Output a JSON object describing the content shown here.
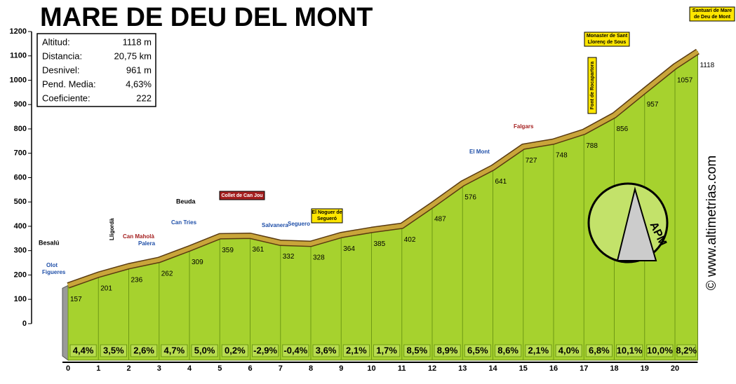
{
  "chart_data": {
    "type": "area",
    "title": "MARE DE DEU DEL MONT",
    "info": [
      {
        "label": "Altitud:",
        "value": "1118 m"
      },
      {
        "label": "Distancia:",
        "value": "20,75 km"
      },
      {
        "label": "Desnivel:",
        "value": "961 m"
      },
      {
        "label": "Pend. Media:",
        "value": "4,63%"
      },
      {
        "label": "Coeficiente:",
        "value": "222"
      }
    ],
    "x": [
      0,
      1,
      2,
      3,
      4,
      5,
      6,
      7,
      8,
      9,
      10,
      11,
      12,
      13,
      14,
      15,
      16,
      17,
      18,
      19,
      20,
      20.75
    ],
    "values": [
      157,
      201,
      236,
      262,
      309,
      359,
      361,
      332,
      328,
      364,
      385,
      402,
      487,
      576,
      641,
      727,
      748,
      788,
      856,
      957,
      1057,
      1118
    ],
    "gradients": [
      4.4,
      3.5,
      2.6,
      4.7,
      5.0,
      0.2,
      -2.9,
      -0.4,
      3.6,
      2.1,
      1.7,
      8.5,
      8.9,
      6.5,
      8.6,
      2.1,
      4.0,
      6.8,
      10.1,
      10.0,
      8.2
    ],
    "gradient_labels": [
      "4,4%",
      "3,5%",
      "2,6%",
      "4,7%",
      "5,0%",
      "0,2%",
      "-2,9%",
      "-0,4%",
      "3,6%",
      "2,1%",
      "1,7%",
      "8,5%",
      "8,9%",
      "6,5%",
      "8,6%",
      "2,1%",
      "4,0%",
      "6,8%",
      "10,1%",
      "10,0%",
      "8,2%"
    ],
    "color": "#a6d22e",
    "line_color": "#c9a53a",
    "xlim": [
      0,
      20.75
    ],
    "ylim": [
      -150,
      1200
    ],
    "yticks": [
      0,
      100,
      200,
      300,
      400,
      500,
      600,
      700,
      800,
      900,
      1000,
      1100,
      1200
    ],
    "xticks": [
      0,
      1,
      2,
      3,
      4,
      5,
      6,
      7,
      8,
      9,
      10,
      11,
      12,
      13,
      14,
      15,
      16,
      17,
      18,
      19,
      20
    ],
    "places": [
      "Besalú",
      "Olot",
      "Figueres",
      "Lligordà",
      "Can Maholà",
      "Palera",
      "Can Tries",
      "Beuda",
      "Collet de Can Jou",
      "Salvanera",
      "Seguero",
      "El Noguer de Segueró",
      "El Mont",
      "Falgars",
      "Font de Rocapartora",
      "Monaster de Sant Llorenç de Sous",
      "Santuari de Mare de Deu de Mont"
    ],
    "logo": "APM",
    "credit": "© www.altimetrias.com"
  }
}
